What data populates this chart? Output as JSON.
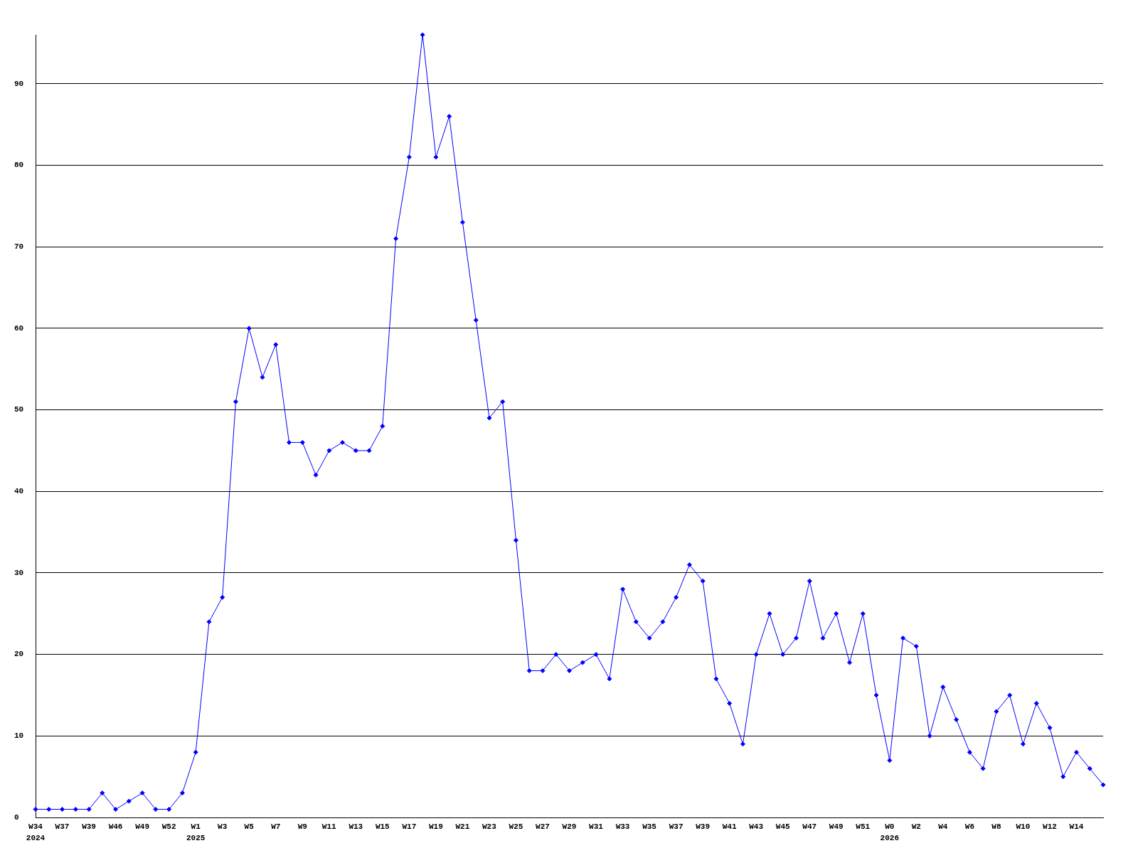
{
  "chart_data": {
    "type": "line",
    "categories": [
      "W34\n2024",
      null,
      "W37",
      null,
      "W39",
      null,
      "W46",
      null,
      "W49",
      null,
      "W52",
      null,
      "W1\n2025",
      null,
      "W3",
      null,
      "W5",
      null,
      "W7",
      null,
      "W9",
      null,
      "W11",
      null,
      "W13",
      null,
      "W15",
      null,
      "W17",
      null,
      "W19",
      null,
      "W21",
      null,
      "W23",
      null,
      "W25",
      null,
      "W27",
      null,
      "W29",
      null,
      "W31",
      null,
      "W33",
      null,
      "W35",
      null,
      "W37",
      null,
      "W39",
      null,
      "W41",
      null,
      "W43",
      null,
      "W45",
      null,
      "W47",
      null,
      "W49",
      null,
      "W51",
      null,
      "W0\n2026",
      null,
      "W2",
      null,
      "W4",
      null,
      "W6",
      null,
      "W8",
      null,
      "W10",
      null,
      "W12",
      null,
      "W14",
      null,
      null
    ],
    "series": [
      {
        "color": "#0000ff",
        "values": [
          1,
          1,
          1,
          1,
          1,
          3,
          1,
          2,
          3,
          1,
          1,
          3,
          8,
          24,
          27,
          51,
          60,
          54,
          58,
          46,
          46,
          42,
          45,
          46,
          45,
          45,
          48,
          71,
          81,
          96,
          81,
          86,
          73,
          61,
          49,
          51,
          34,
          18,
          18,
          20,
          18,
          19,
          20,
          17,
          28,
          24,
          22,
          24,
          27,
          31,
          29,
          17,
          14,
          9,
          20,
          25,
          20,
          22,
          29,
          22,
          25,
          19,
          25,
          15,
          7,
          22,
          21,
          10,
          16,
          12,
          8,
          6,
          13,
          15,
          9,
          14,
          11,
          5,
          8,
          6,
          4
        ]
      }
    ],
    "ylim": [
      0,
      96
    ],
    "yticks": [
      0,
      10,
      20,
      30,
      40,
      50,
      60,
      70,
      80,
      90
    ],
    "grid": "y",
    "marker": "diamond",
    "line_style": "solid"
  }
}
